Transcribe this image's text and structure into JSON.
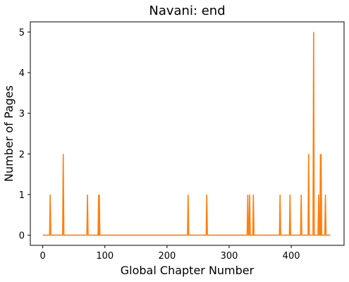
{
  "chart_data": {
    "type": "line",
    "title": "Navani: end",
    "xlabel": "Global Chapter Number",
    "ylabel": "Number of Pages",
    "xlim": [
      -20,
      485
    ],
    "ylim": [
      -0.25,
      5.25
    ],
    "xticks": [
      0,
      100,
      200,
      300,
      400
    ],
    "yticks": [
      0,
      1,
      2,
      3,
      4,
      5
    ],
    "grid": false,
    "series": [
      {
        "color": "#ff7f0e",
        "x_start": 0,
        "x_end": 463,
        "spikes": [
          {
            "x": 12,
            "y": 1
          },
          {
            "x": 33,
            "y": 2
          },
          {
            "x": 72,
            "y": 1
          },
          {
            "x": 90,
            "y": 1
          },
          {
            "x": 91,
            "y": 1
          },
          {
            "x": 234,
            "y": 1
          },
          {
            "x": 264,
            "y": 1
          },
          {
            "x": 330,
            "y": 1
          },
          {
            "x": 333,
            "y": 1
          },
          {
            "x": 339,
            "y": 1
          },
          {
            "x": 382,
            "y": 1
          },
          {
            "x": 398,
            "y": 1
          },
          {
            "x": 416,
            "y": 1
          },
          {
            "x": 428,
            "y": 2
          },
          {
            "x": 436,
            "y": 5
          },
          {
            "x": 444,
            "y": 1
          },
          {
            "x": 447,
            "y": 2
          },
          {
            "x": 448,
            "y": 2
          },
          {
            "x": 455,
            "y": 1
          }
        ]
      }
    ]
  }
}
